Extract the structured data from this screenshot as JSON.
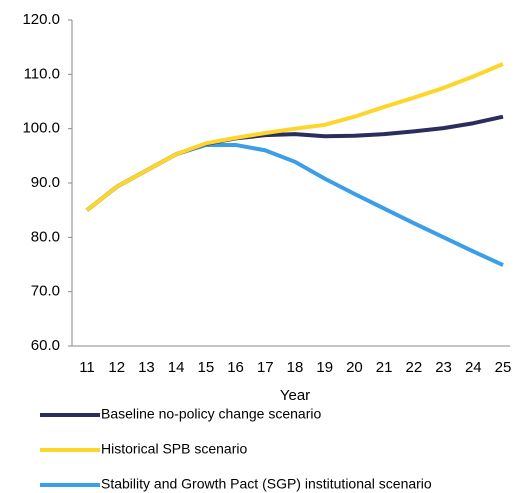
{
  "chart_data": {
    "type": "line",
    "x_label": "Year",
    "categories": [
      "11",
      "12",
      "13",
      "14",
      "15",
      "16",
      "17",
      "18",
      "19",
      "20",
      "21",
      "22",
      "23",
      "24",
      "25"
    ],
    "series": [
      {
        "name": "Baseline no-policy change scenario",
        "color": "#2b2d5e",
        "values": [
          85.0,
          89.3,
          92.3,
          95.3,
          97.2,
          98.2,
          98.8,
          99.0,
          98.6,
          98.7,
          99.0,
          99.5,
          100.1,
          101.0,
          102.2
        ]
      },
      {
        "name": "Historical SPB scenario",
        "color": "#fcd62a",
        "values": [
          85.0,
          89.3,
          92.3,
          95.3,
          97.3,
          98.3,
          99.2,
          100.0,
          100.7,
          102.2,
          104.0,
          105.7,
          107.5,
          109.6,
          111.9
        ]
      },
      {
        "name": "Stability and Growth Pact (SGP) institutional scenario",
        "color": "#3a9ee8",
        "values": [
          85.0,
          89.3,
          92.3,
          95.3,
          97.0,
          97.0,
          96.0,
          93.9,
          90.8,
          88.0,
          85.3,
          82.6,
          80.0,
          77.4,
          74.9
        ]
      }
    ],
    "ylim": [
      60,
      120
    ],
    "yticks": [
      {
        "value": 60,
        "label": "60.0"
      },
      {
        "value": 70,
        "label": "70.0"
      },
      {
        "value": 80,
        "label": "80.0"
      },
      {
        "value": 90,
        "label": "90.0"
      },
      {
        "value": 100,
        "label": "100.0"
      },
      {
        "value": 110,
        "label": "110.0"
      },
      {
        "value": 120,
        "label": "120.0"
      }
    ],
    "legend": "bottom"
  }
}
